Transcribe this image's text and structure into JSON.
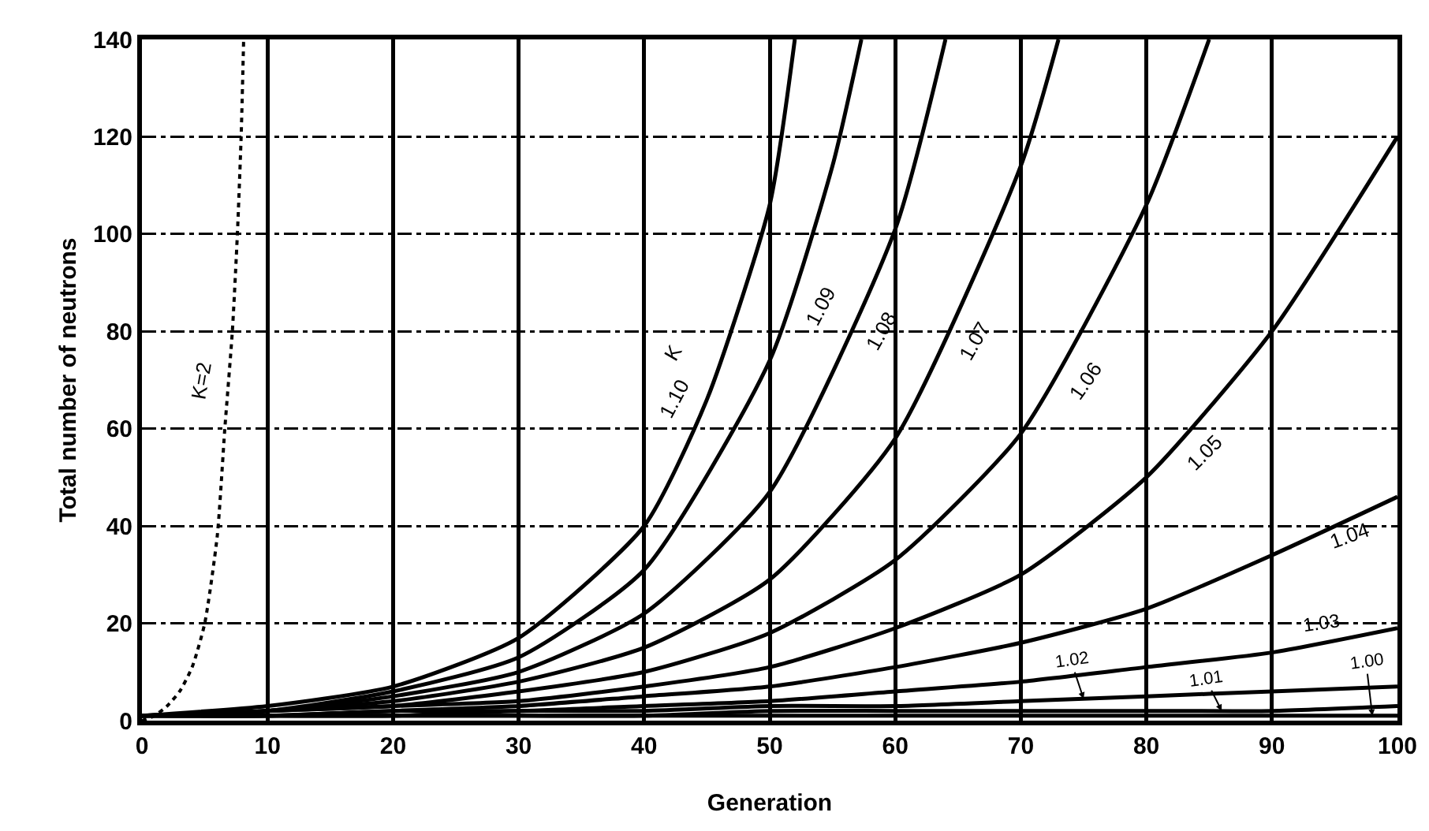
{
  "chart_data": {
    "type": "line",
    "xlabel": "Generation",
    "ylabel": "Total number of neutrons",
    "legend_title": "K",
    "xlim": [
      0,
      100
    ],
    "ylim": [
      0,
      140
    ],
    "xticks": [
      0,
      10,
      20,
      30,
      40,
      50,
      60,
      70,
      80,
      90,
      100
    ],
    "yticks": [
      0,
      20,
      40,
      60,
      80,
      100,
      120,
      140
    ],
    "grid": true,
    "legend": false,
    "marker": "none",
    "line_style": "solid",
    "series": [
      {
        "name": "K=2",
        "color": "#000000",
        "line_style": "dotted",
        "x": [
          0,
          1,
          2,
          3,
          4,
          5,
          6,
          6.6,
          7.2,
          7.6,
          7.9,
          8.1
        ],
        "values": [
          0,
          1,
          3,
          6,
          11,
          20,
          38,
          60,
          80,
          100,
          120,
          140
        ]
      },
      {
        "name": "1.10",
        "color": "#000000",
        "x": [
          0,
          10,
          20,
          30,
          40,
          45,
          50,
          52
        ],
        "values": [
          1,
          3,
          7,
          17,
          40,
          66,
          106,
          140
        ]
      },
      {
        "name": "1.09",
        "color": "#000000",
        "x": [
          0,
          10,
          20,
          30,
          40,
          50,
          55,
          57.3
        ],
        "values": [
          1,
          2,
          6,
          13,
          31,
          74,
          114,
          140
        ]
      },
      {
        "name": "1.08",
        "color": "#000000",
        "x": [
          0,
          10,
          20,
          30,
          40,
          50,
          60,
          64
        ],
        "values": [
          1,
          2,
          5,
          10,
          22,
          47,
          101,
          140
        ]
      },
      {
        "name": "1.07",
        "color": "#000000",
        "x": [
          0,
          10,
          20,
          30,
          40,
          50,
          60,
          70,
          73
        ],
        "values": [
          1,
          2,
          4,
          8,
          15,
          29,
          58,
          114,
          140
        ]
      },
      {
        "name": "1.06",
        "color": "#000000",
        "x": [
          0,
          10,
          20,
          30,
          40,
          50,
          60,
          70,
          80,
          85
        ],
        "values": [
          1,
          2,
          3,
          6,
          10,
          18,
          33,
          59,
          106,
          140
        ]
      },
      {
        "name": "1.05",
        "color": "#000000",
        "x": [
          0,
          10,
          20,
          30,
          40,
          50,
          60,
          70,
          80,
          90,
          100
        ],
        "values": [
          1,
          2,
          3,
          4,
          7,
          11,
          19,
          30,
          50,
          80,
          120
        ]
      },
      {
        "name": "1.04",
        "color": "#000000",
        "x": [
          0,
          10,
          20,
          30,
          40,
          50,
          60,
          70,
          80,
          90,
          100
        ],
        "values": [
          1,
          1,
          2,
          3,
          5,
          7,
          11,
          16,
          23,
          34,
          46
        ]
      },
      {
        "name": "1.03",
        "color": "#000000",
        "x": [
          0,
          10,
          20,
          30,
          40,
          50,
          60,
          70,
          80,
          90,
          100
        ],
        "values": [
          1,
          1,
          2,
          2,
          3,
          4,
          6,
          8,
          11,
          14,
          19
        ]
      },
      {
        "name": "1.02",
        "color": "#000000",
        "x": [
          0,
          10,
          20,
          30,
          40,
          50,
          60,
          70,
          80,
          90,
          100
        ],
        "values": [
          1,
          1,
          1,
          2,
          2,
          3,
          3,
          4,
          5,
          6,
          7
        ]
      },
      {
        "name": "1.01",
        "color": "#000000",
        "x": [
          0,
          10,
          20,
          30,
          40,
          50,
          60,
          70,
          80,
          90,
          100
        ],
        "values": [
          1,
          1,
          1,
          1,
          1,
          2,
          2,
          2,
          2,
          2,
          3
        ]
      },
      {
        "name": "1.00",
        "color": "#000000",
        "x": [
          0,
          10,
          20,
          30,
          40,
          50,
          60,
          70,
          80,
          90,
          100
        ],
        "values": [
          1,
          1,
          1,
          1,
          1,
          1,
          1,
          1,
          1,
          1,
          1
        ]
      }
    ]
  }
}
